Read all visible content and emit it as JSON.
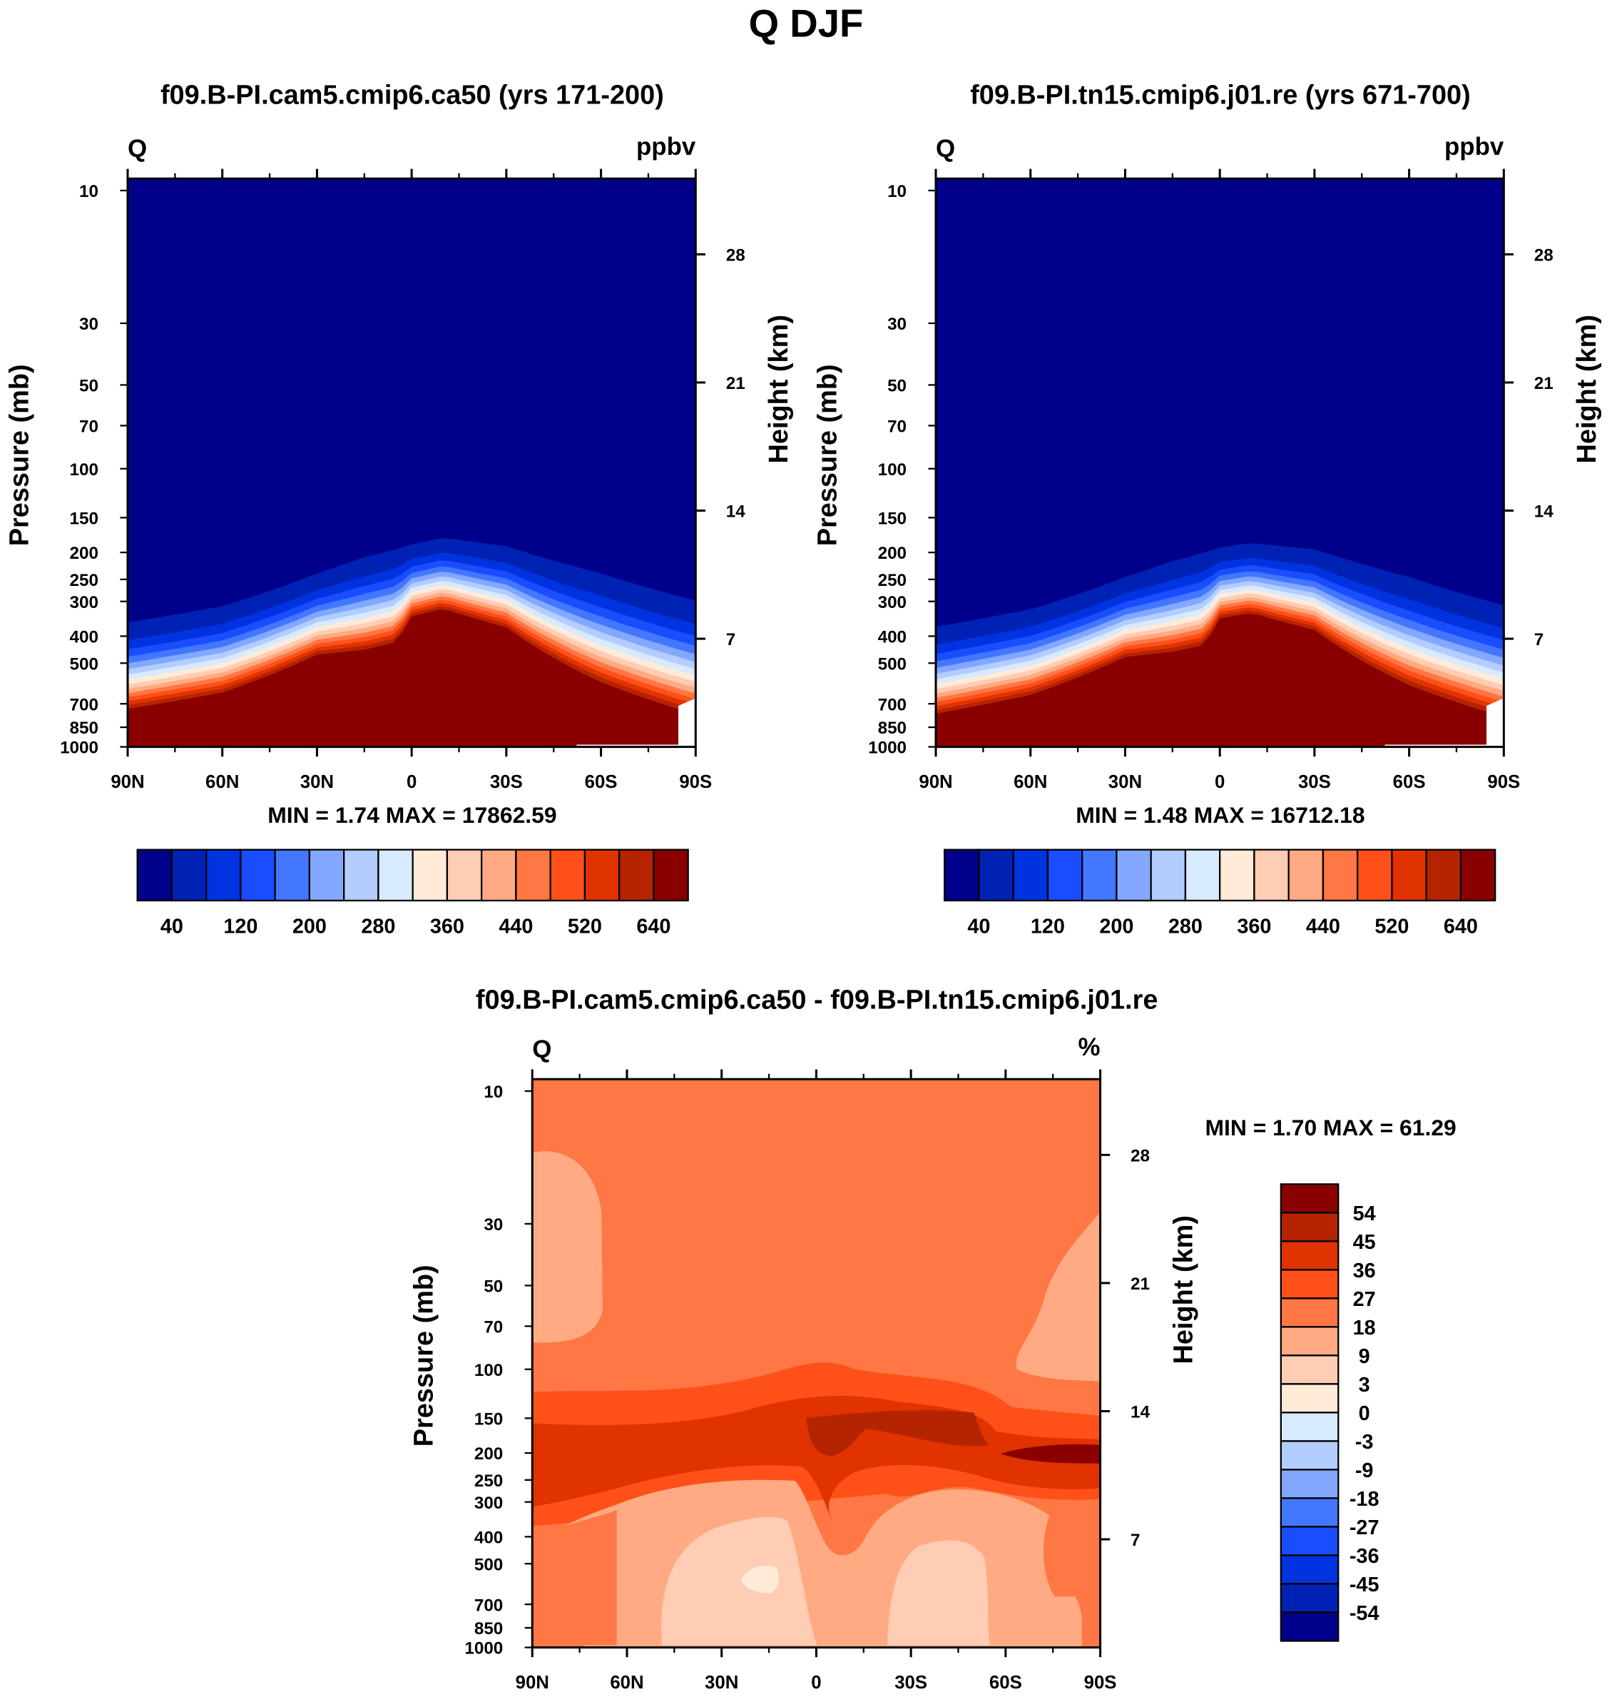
{
  "chart_data": {
    "type": "heatmap",
    "title": "Q DJF",
    "palette": [
      "#00008a",
      "#0022b4",
      "#0033e0",
      "#1a4dff",
      "#4477ff",
      "#82a9ff",
      "#b4cdff",
      "#d8eaff",
      "#ffebd8",
      "#ffccb4",
      "#ffaa82",
      "#ff7744",
      "#ff501a",
      "#e03300",
      "#b52400",
      "#8a0000"
    ],
    "panels": [
      {
        "subtitle": "f09.B-PI.cam5.cmip6.ca50 (yrs 171-200)",
        "left_label": "Q",
        "units": "ppbv",
        "ylabel": "Pressure (mb)",
        "ylabel_right": "Height (km)",
        "min_max": "MIN =   1.74  MAX = 17862.59",
        "lat": [
          90,
          60,
          30,
          15,
          5,
          0,
          -10,
          -30,
          -60,
          -90
        ],
        "p_top": [
          357,
          312,
          238,
          208,
          195,
          187,
          177,
          190,
          238,
          298
        ],
        "p_red": [
          730,
          638,
          466,
          447,
          420,
          340,
          318,
          372,
          585,
          764
        ]
      },
      {
        "subtitle": "f09.B-PI.tn15.cmip6.j01.re (yrs 671-700)",
        "left_label": "Q",
        "units": "ppbv",
        "ylabel": "Pressure (mb)",
        "ylabel_right": "Height (km)",
        "min_max": "MIN =   1.48  MAX = 16712.18",
        "lat": [
          90,
          60,
          30,
          15,
          5,
          0,
          -10,
          -30,
          -60,
          -90
        ],
        "p_top": [
          370,
          320,
          245,
          215,
          200,
          192,
          185,
          195,
          245,
          310
        ],
        "p_red": [
          760,
          650,
          475,
          455,
          430,
          345,
          330,
          380,
          600,
          780
        ]
      },
      {
        "subtitle": "f09.B-PI.cam5.cmip6.ca50 - f09.B-PI.tn15.cmip6.j01.re",
        "left_label": "Q",
        "units": "%",
        "ylabel": "Pressure (mb)",
        "ylabel_right": "Height (km)",
        "min_max": "MIN =    1.70  MAX =  61.29"
      }
    ],
    "x_ticks": [
      "90N",
      "60N",
      "30N",
      "0",
      "30S",
      "60S",
      "90S"
    ],
    "x_tick_values": [
      90,
      60,
      30,
      0,
      -30,
      -60,
      -90
    ],
    "y_ticks": [
      "10",
      "30",
      "50",
      "70",
      "100",
      "150",
      "200",
      "250",
      "300",
      "400",
      "500",
      "700",
      "850",
      "1000"
    ],
    "y_tick_values": [
      10,
      30,
      50,
      70,
      100,
      150,
      200,
      250,
      300,
      400,
      500,
      700,
      850,
      1000
    ],
    "y_right_ticks": [
      "7",
      "14",
      "21",
      "28"
    ],
    "y_right_values": [
      7,
      14,
      21,
      28
    ],
    "ylim": [
      1000,
      9
    ],
    "colorbar_abs": {
      "labels": [
        "40",
        "120",
        "200",
        "280",
        "360",
        "440",
        "520",
        "640"
      ],
      "levels": [
        20,
        40,
        80,
        120,
        160,
        200,
        240,
        280,
        320,
        360,
        400,
        440,
        480,
        520,
        580,
        640
      ]
    },
    "colorbar_diff": {
      "labels": [
        "54",
        "45",
        "36",
        "27",
        "18",
        "9",
        "3",
        "0",
        "-3",
        "-9",
        "-18",
        "-27",
        "-36",
        "-45",
        "-54"
      ],
      "levels": [
        -54,
        -45,
        -36,
        -27,
        -18,
        -9,
        -3,
        0,
        3,
        9,
        18,
        27,
        36,
        45,
        54
      ]
    }
  }
}
